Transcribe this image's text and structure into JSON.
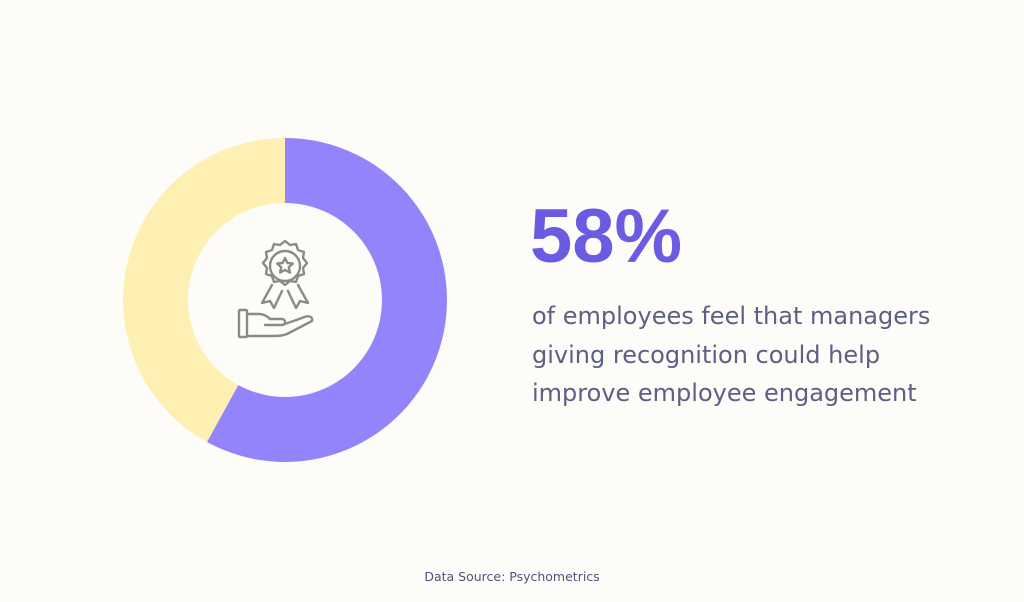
{
  "chart_data": {
    "type": "donut",
    "values": [
      58,
      42
    ],
    "value_labels": [
      "58%",
      null
    ],
    "colors": [
      "#9484fb",
      "#fdf0b2"
    ],
    "description": [
      "of employees feel that managers",
      "giving recognition could help",
      "improve employee engagement"
    ],
    "source": "Data Source: Psychometrics"
  }
}
